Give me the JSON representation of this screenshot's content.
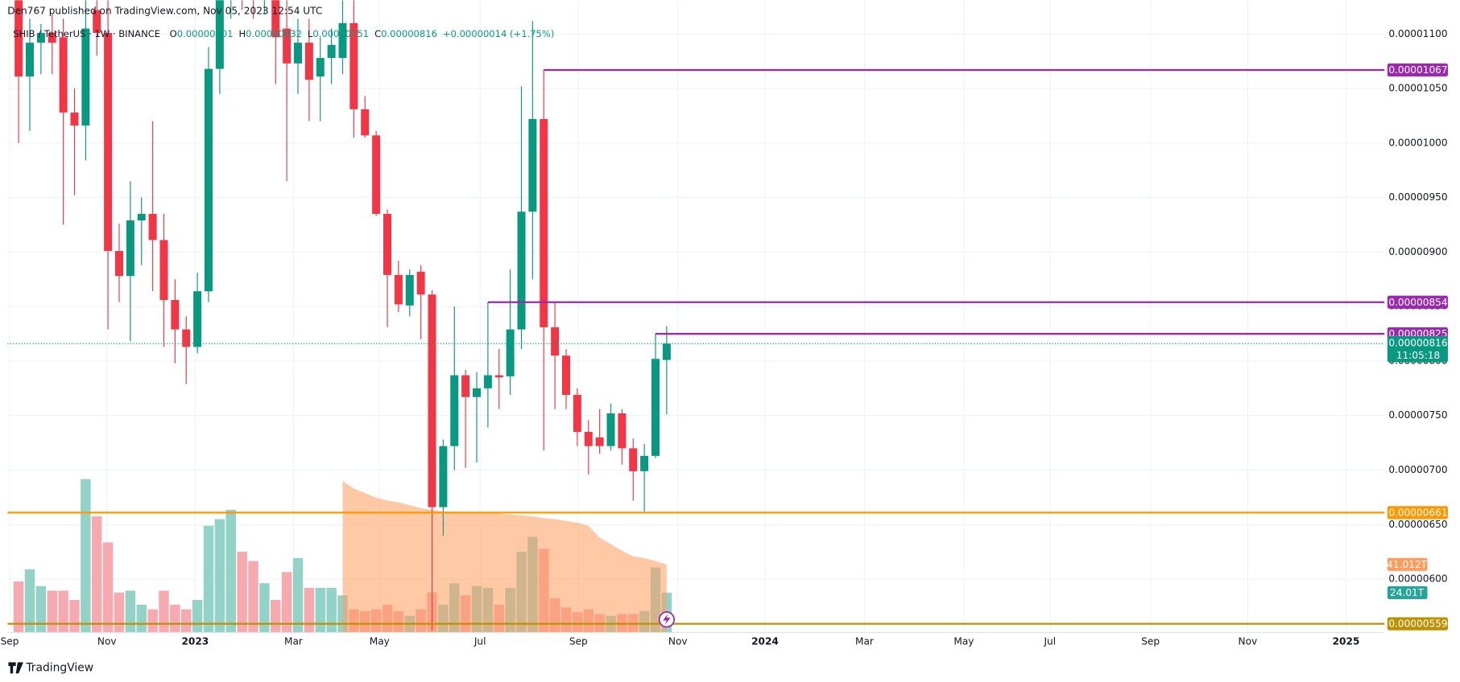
{
  "header": {
    "publisher": "Den767 published on TradingView.com, Nov 05, 2023 12:54 UTC",
    "brand": "TradingView"
  },
  "chart_data": {
    "type": "candlestick",
    "legend": {
      "symbol": "SHIB / TetherUS · 1W · BINANCE",
      "ohlc_keys": [
        "O",
        "H",
        "L",
        "C"
      ],
      "change": "+0.00000014 (+1.75%)"
    },
    "up_color": "#089981",
    "down_color": "#f23645",
    "candles": {
      "open": [
        1.131e-05,
        1.061e-05,
        1.092e-05,
        1.101e-05,
        1.097e-05,
        1.028e-05,
        1.016e-05,
        1.122e-05,
        1.101e-05,
        9.01e-06,
        8.78e-06,
        9.29e-06,
        9.35e-06,
        9.11e-06,
        8.56e-06,
        8.29e-06,
        8.13e-06,
        8.64e-06,
        1.068e-05,
        1.139e-05,
        1.165e-05,
        1.148e-05,
        1.135e-05,
        1.152e-05,
        1.105e-05,
        1.073e-05,
        1.092e-05,
        1.061e-05,
        1.078e-05,
        1.078e-05,
        1.11e-05,
        1.031e-05,
        1.007e-05,
        9.35e-06,
        8.79e-06,
        8.51e-06,
        8.82e-06,
        8.61e-06,
        6.66e-06,
        7.22e-06,
        7.87e-06,
        7.67e-06,
        7.75e-06,
        7.87e-06,
        7.86e-06,
        8.29e-06,
        9.37e-06,
        1.022e-05,
        8.31e-06,
        8.05e-06,
        7.69e-06,
        7.35e-06,
        7.3e-06,
        7.22e-06,
        7.52e-06,
        7.2e-06,
        6.99e-06,
        7.13e-06,
        8.01e-06
      ],
      "high": [
        1.135e-05,
        1.114e-05,
        1.109e-05,
        1.118e-05,
        1.114e-05,
        1.05e-05,
        1.131e-05,
        1.135e-05,
        1.131e-05,
        9.26e-06,
        9.65e-06,
        9.5e-06,
        1.02e-05,
        9.35e-06,
        8.75e-06,
        8.41e-06,
        8.81e-06,
        1.088e-05,
        1.156e-05,
        1.182e-05,
        1.182e-05,
        1.165e-05,
        1.169e-05,
        1.165e-05,
        1.131e-05,
        1.114e-05,
        1.114e-05,
        1.097e-05,
        1.105e-05,
        1.131e-05,
        1.131e-05,
        1.043e-05,
        1.011e-05,
        9.39e-06,
        8.92e-06,
        8.84e-06,
        8.88e-06,
        8.65e-06,
        7.28e-06,
        8.5e-06,
        7.92e-06,
        7.9e-06,
        8.54e-06,
        8.11e-06,
        8.84e-06,
        1.052e-05,
        1.112e-05,
        1.067e-05,
        8.54e-06,
        8.11e-06,
        7.75e-06,
        7.46e-06,
        7.56e-06,
        7.61e-06,
        7.56e-06,
        7.29e-06,
        7.24e-06,
        8.25e-06,
        8.32e-06
      ],
      "low": [
        1e-05,
        1.011e-05,
        1.063e-05,
        1.063e-05,
        9.25e-06,
        9.52e-06,
        9.84e-06,
        1.08e-05,
        8.29e-06,
        8.54e-06,
        8.18e-06,
        8.88e-06,
        8.64e-06,
        8.13e-06,
        7.98e-06,
        7.79e-06,
        8.07e-06,
        8.54e-06,
        1.045e-05,
        1.114e-05,
        1.122e-05,
        1.114e-05,
        1.118e-05,
        1.054e-05,
        9.65e-06,
        1.045e-05,
        1.02e-05,
        1.02e-05,
        1.054e-05,
        1.063e-05,
        1.005e-05,
        1.005e-05,
        9.33e-06,
        8.31e-06,
        8.45e-06,
        8.41e-06,
        8.2e-06,
        5.53e-06,
        6.4e-06,
        7e-06,
        7.02e-06,
        7.07e-06,
        7.39e-06,
        7.56e-06,
        7.69e-06,
        8.11e-06,
        8.75e-06,
        7.18e-06,
        7.56e-06,
        7.56e-06,
        7.22e-06,
        6.96e-06,
        7.15e-06,
        7.18e-06,
        7.05e-06,
        6.72e-06,
        6.62e-06,
        7.11e-06,
        7.51e-06
      ],
      "close": [
        1.061e-05,
        1.092e-05,
        1.101e-05,
        1.092e-05,
        1.028e-05,
        1.016e-05,
        1.105e-05,
        1.101e-05,
        9.01e-06,
        8.78e-06,
        9.29e-06,
        9.35e-06,
        9.11e-06,
        8.56e-06,
        8.29e-06,
        8.13e-06,
        8.64e-06,
        1.068e-05,
        1.139e-05,
        1.165e-05,
        1.148e-05,
        1.135e-05,
        1.152e-05,
        1.097e-05,
        1.073e-05,
        1.092e-05,
        1.058e-05,
        1.078e-05,
        1.09e-05,
        1.11e-05,
        1.031e-05,
        1.007e-05,
        9.35e-06,
        8.79e-06,
        8.52e-06,
        8.79e-06,
        8.61e-06,
        6.66e-06,
        7.22e-06,
        7.87e-06,
        7.67e-06,
        7.75e-06,
        7.87e-06,
        7.85e-06,
        8.29e-06,
        9.37e-06,
        1.022e-05,
        8.31e-06,
        8.05e-06,
        7.69e-06,
        7.35e-06,
        7.22e-06,
        7.22e-06,
        7.52e-06,
        7.2e-06,
        6.99e-06,
        7.13e-06,
        8.02e-06,
        8.16e-06
      ]
    },
    "countdown": "11:05:18",
    "volume": {
      "up_color": "#92d2c7",
      "down_color": "#f7a9b0",
      "values": [
        30.8,
        38.1,
        28,
        25.2,
        25.2,
        19.6,
        92.4,
        70,
        54.3,
        24.1,
        25.2,
        16.8,
        14,
        25.2,
        16.8,
        14,
        19.6,
        64.4,
        68.3,
        73.9,
        48.7,
        43.1,
        29.7,
        19.6,
        36.4,
        44.8,
        26.9,
        26.9,
        26.9,
        22.4,
        14,
        12.9,
        14,
        16.8,
        12.9,
        10.1,
        14,
        24.1,
        16.8,
        29.7,
        22.4,
        28,
        26.9,
        16.8,
        26.9,
        48.7,
        57.7,
        50.4,
        20.7,
        15.1,
        12.3,
        14,
        11.2,
        10.1,
        11.2,
        11.2,
        12.9,
        39.2,
        24.01
      ],
      "value_labels": [
        null,
        null,
        null,
        null,
        null,
        null,
        null,
        null,
        null,
        null,
        null,
        null,
        null,
        null,
        null,
        null,
        null,
        null,
        null,
        null,
        null,
        null,
        null,
        null,
        null,
        null,
        null,
        null,
        null,
        null,
        null,
        null,
        null,
        null,
        null,
        null,
        null,
        null,
        null,
        null,
        null,
        null,
        null,
        null,
        null,
        null,
        null,
        null,
        null,
        null,
        null,
        null,
        null,
        null,
        null,
        null,
        null,
        null,
        "24.01T"
      ],
      "label_color": "#26a69a",
      "ylim": [
        0,
        200
      ]
    },
    "volume_average": {
      "color": "#ff9d5c",
      "values": [
        null,
        null,
        null,
        null,
        null,
        null,
        null,
        null,
        null,
        null,
        null,
        null,
        null,
        null,
        null,
        null,
        null,
        null,
        null,
        null,
        null,
        null,
        null,
        null,
        null,
        null,
        null,
        null,
        null,
        91.3,
        86.8,
        84,
        81.2,
        79.5,
        78.4,
        76.7,
        75,
        73.9,
        72.8,
        72.8,
        72.8,
        72.2,
        72.2,
        71.7,
        71.1,
        70.6,
        70,
        68.9,
        68.3,
        67.2,
        66.1,
        64.4,
        57.1,
        53.2,
        49.3,
        45.9,
        44.8,
        43.1,
        41.012
      ],
      "value_labels": [
        null,
        null,
        null,
        null,
        null,
        null,
        null,
        null,
        null,
        null,
        null,
        null,
        null,
        null,
        null,
        null,
        null,
        null,
        null,
        null,
        null,
        null,
        null,
        null,
        null,
        null,
        null,
        null,
        null,
        null,
        null,
        null,
        null,
        null,
        null,
        null,
        null,
        null,
        null,
        null,
        null,
        null,
        null,
        null,
        null,
        null,
        null,
        null,
        null,
        null,
        null,
        null,
        null,
        null,
        null,
        null,
        null,
        null,
        "41.012T"
      ]
    },
    "levels": [
      {
        "value": 1.067e-05,
        "color": "#9c27b0"
      },
      {
        "value": 8.54e-06,
        "color": "#9c27b0"
      },
      {
        "value": 8.25e-06,
        "color": "#9c27b0"
      },
      {
        "value": 6.61e-06,
        "color": "#ff9800"
      },
      {
        "value": 5.59e-06,
        "color": "#bf9000"
      }
    ],
    "ylim": [
      5.51e-06,
      1.131e-05
    ],
    "yticks": [
      {
        "value": 1.1e-05,
        "label": "0.00001100"
      },
      {
        "value": 1.05e-05,
        "label": "0.00001050"
      },
      {
        "value": 1e-05,
        "label": "0.00001000"
      },
      {
        "value": 9.5e-06,
        "label": "0.00000950"
      },
      {
        "value": 9e-06,
        "label": "0.00000900"
      },
      {
        "value": 8.5e-06,
        "label": "0.00000850"
      },
      {
        "value": 8e-06,
        "label": "0.00000800"
      },
      {
        "value": 7.5e-06,
        "label": "0.00000750"
      },
      {
        "value": 7e-06,
        "label": "0.00000700"
      },
      {
        "value": 6.5e-06,
        "label": "0.00000650"
      },
      {
        "value": 6e-06,
        "label": "0.00000600"
      }
    ],
    "xlim": [
      -1,
      122.25
    ],
    "xticks": [
      {
        "value": -0.8,
        "label": "Sep"
      },
      {
        "value": 7.9,
        "label": "Nov"
      },
      {
        "value": 15.8,
        "label": "2023"
      },
      {
        "value": 24.6,
        "label": "Mar"
      },
      {
        "value": 32.3,
        "label": "May"
      },
      {
        "value": 41.3,
        "label": "Jul"
      },
      {
        "value": 50.1,
        "label": "Sep"
      },
      {
        "value": 59,
        "label": "Nov"
      },
      {
        "value": 66.8,
        "label": "2024"
      },
      {
        "value": 75.7,
        "label": "Mar"
      },
      {
        "value": 84.6,
        "label": "May"
      },
      {
        "value": 92.3,
        "label": "Jul"
      },
      {
        "value": 101.3,
        "label": "Sep"
      },
      {
        "value": 110,
        "label": "Nov"
      },
      {
        "value": 118.8,
        "label": "2025"
      }
    ],
    "grid": true
  }
}
